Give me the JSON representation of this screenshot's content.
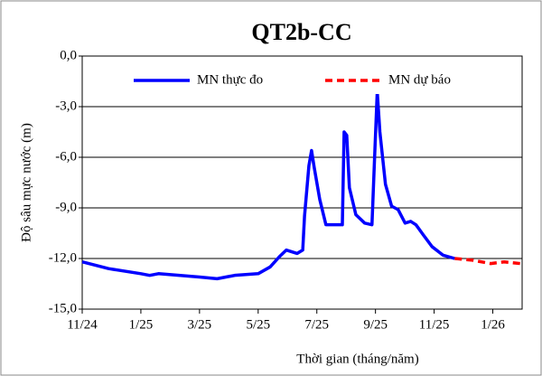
{
  "chart_data": {
    "type": "line",
    "title": "QT2b-CC",
    "x_label": "Thời gian (tháng/năm)",
    "y_label": "Độ sâu mực nước (m)",
    "xlim": [
      0,
      15
    ],
    "xticks": [
      {
        "value": 0,
        "label": "11/24"
      },
      {
        "value": 2,
        "label": "1/25"
      },
      {
        "value": 4,
        "label": "3/25"
      },
      {
        "value": 6,
        "label": "5/25"
      },
      {
        "value": 8,
        "label": "7/25"
      },
      {
        "value": 10,
        "label": "9/25"
      },
      {
        "value": 12,
        "label": "11/25"
      },
      {
        "value": 14,
        "label": "1/26"
      }
    ],
    "ylim": [
      -15,
      0
    ],
    "yticks": [
      {
        "value": -15,
        "label": "-15,0"
      },
      {
        "value": -12,
        "label": "-12,0"
      },
      {
        "value": -9,
        "label": "-9,0"
      },
      {
        "value": -6,
        "label": "-6,0"
      },
      {
        "value": -3,
        "label": "-3,0"
      },
      {
        "value": 0,
        "label": "0,0"
      }
    ],
    "grid": true,
    "legend": "top",
    "series": [
      {
        "name": "MN thực đo",
        "color": "#0000ff",
        "dash": false,
        "x": [
          0,
          0.9,
          2,
          2.3,
          2.6,
          4,
          4.6,
          5.2,
          6,
          6.41,
          6.72,
          6.96,
          7.33,
          7.52,
          7.58,
          7.73,
          7.82,
          7.91,
          8.1,
          8.31,
          8.59,
          8.87,
          8.93,
          9.02,
          9.11,
          9.33,
          9.63,
          9.88,
          9.97,
          10.06,
          10.15,
          10.34,
          10.55,
          10.77,
          11.01,
          11.2,
          11.38,
          11.63,
          11.93,
          12.3,
          12.7
        ],
        "values": [
          -12.2,
          -12.6,
          -12.9,
          -13.0,
          -12.9,
          -13.1,
          -13.2,
          -13.0,
          -12.9,
          -12.5,
          -11.9,
          -11.5,
          -11.7,
          -11.5,
          -9.5,
          -6.5,
          -5.6,
          -6.6,
          -8.5,
          -10.0,
          -10.0,
          -10.0,
          -4.5,
          -4.7,
          -7.8,
          -9.4,
          -9.9,
          -10.0,
          -6.0,
          -2.1,
          -4.5,
          -7.6,
          -8.9,
          -9.1,
          -9.9,
          -9.8,
          -10.0,
          -10.6,
          -11.3,
          -11.8,
          -12.0
        ]
      },
      {
        "name": "MN dự báo",
        "color": "#ff0000",
        "dash": true,
        "x": [
          12.7,
          13.31,
          13.93,
          14.39,
          14.94
        ],
        "values": [
          -12.0,
          -12.1,
          -12.3,
          -12.2,
          -12.3
        ]
      }
    ]
  }
}
